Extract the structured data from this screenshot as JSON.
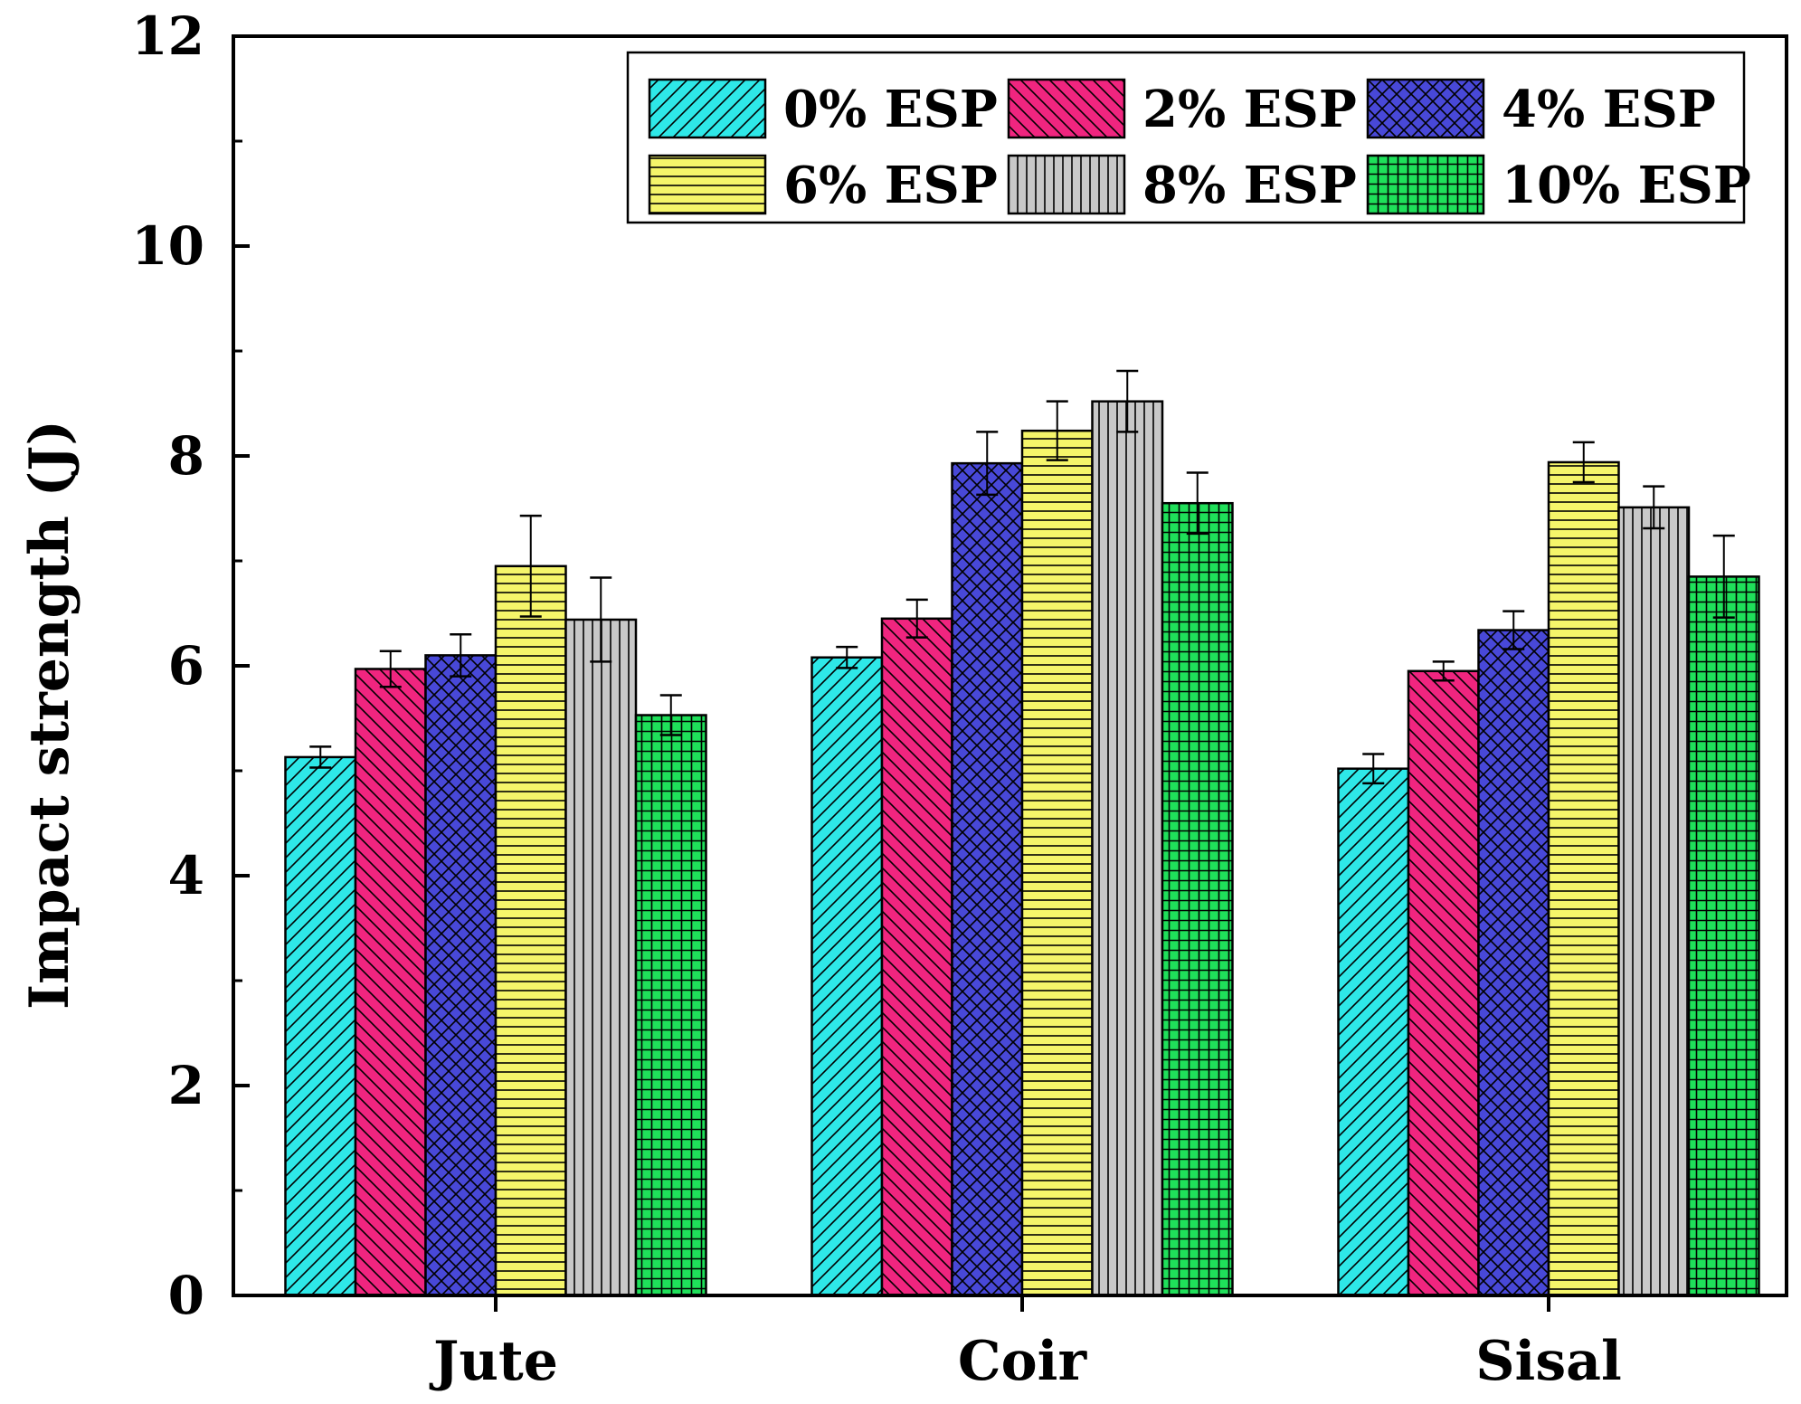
{
  "chart_data": {
    "type": "bar",
    "title": "",
    "xlabel": "",
    "ylabel": "Impact strength (J)",
    "ylim": [
      0,
      12
    ],
    "yticks": [
      "0",
      "2",
      "4",
      "6",
      "8",
      "10",
      "12"
    ],
    "categories": [
      "Jute",
      "Coir",
      "Sisal"
    ],
    "legend_position": "top-right",
    "series": [
      {
        "name": "0% ESP",
        "color": "#2ee8e8",
        "pattern": "diag-up",
        "values": [
          5.13,
          6.08,
          5.02
        ],
        "errors": [
          0.1,
          0.1,
          0.14
        ]
      },
      {
        "name": "2% ESP",
        "color": "#f0257f",
        "pattern": "diag-down",
        "values": [
          5.97,
          6.45,
          5.95
        ],
        "errors": [
          0.17,
          0.18,
          0.09
        ]
      },
      {
        "name": "4% ESP",
        "color": "#4848d8",
        "pattern": "crosshatch",
        "values": [
          6.1,
          7.93,
          6.34
        ],
        "errors": [
          0.2,
          0.3,
          0.18
        ]
      },
      {
        "name": "6% ESP",
        "color": "#f5f56a",
        "pattern": "horizontal",
        "values": [
          6.95,
          8.24,
          7.94
        ],
        "errors": [
          0.48,
          0.28,
          0.19
        ]
      },
      {
        "name": "8% ESP",
        "color": "#c8c8c8",
        "pattern": "vertical",
        "values": [
          6.44,
          8.52,
          7.51
        ],
        "errors": [
          0.4,
          0.29,
          0.2
        ]
      },
      {
        "name": "10% ESP",
        "color": "#1fe05a",
        "pattern": "grid",
        "values": [
          5.53,
          7.55,
          6.85
        ],
        "errors": [
          0.19,
          0.29,
          0.39
        ]
      }
    ]
  }
}
